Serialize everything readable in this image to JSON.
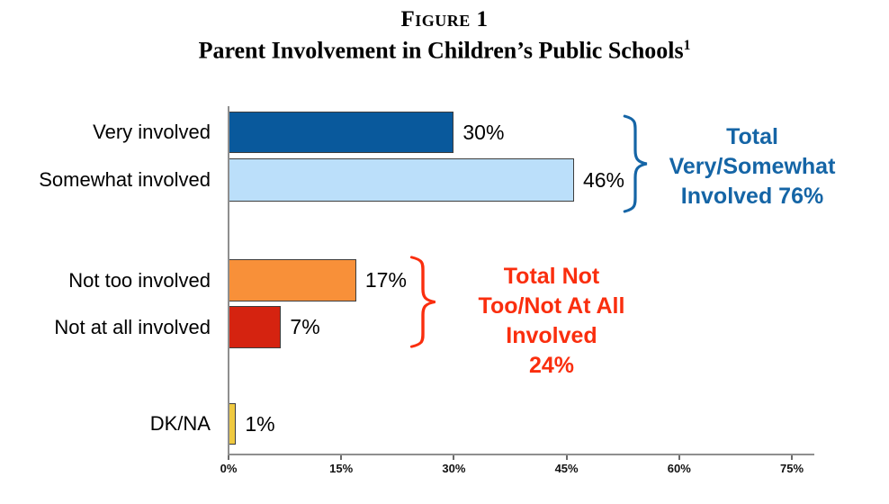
{
  "title": {
    "figure_label": "Figure 1",
    "main": "Parent Involvement in Children’s Public Schools",
    "superscript": "1"
  },
  "chart_data": {
    "type": "bar",
    "orientation": "horizontal",
    "title": "Parent Involvement in Children’s Public Schools",
    "categories": [
      "Very involved",
      "Somewhat involved",
      "Not too involved",
      "Not at all involved",
      "DK/NA"
    ],
    "values": [
      30,
      46,
      17,
      7,
      1
    ],
    "value_labels": [
      "30%",
      "46%",
      "17%",
      "7%",
      "1%"
    ],
    "bar_colors": [
      "#09599C",
      "#BBDFFA",
      "#F89039",
      "#D52310",
      "#EFC940"
    ],
    "xlim": [
      0,
      75
    ],
    "x_ticks": [
      "0%",
      "15%",
      "30%",
      "45%",
      "60%",
      "75%"
    ],
    "x_tick_values": [
      0,
      15,
      30,
      45,
      60,
      75
    ],
    "grid": false,
    "annotations": [
      {
        "text_lines": [
          "Total",
          "Very/Somewhat",
          "Involved 76%"
        ],
        "total_value": 76,
        "color": "#1565A6",
        "applies_to": [
          "Very involved",
          "Somewhat involved"
        ]
      },
      {
        "text_lines": [
          "Total Not",
          "Too/Not At All",
          "Involved",
          "24%"
        ],
        "total_value": 24,
        "color": "#FA2E0E",
        "applies_to": [
          "Not too involved",
          "Not at all involved"
        ]
      }
    ]
  }
}
